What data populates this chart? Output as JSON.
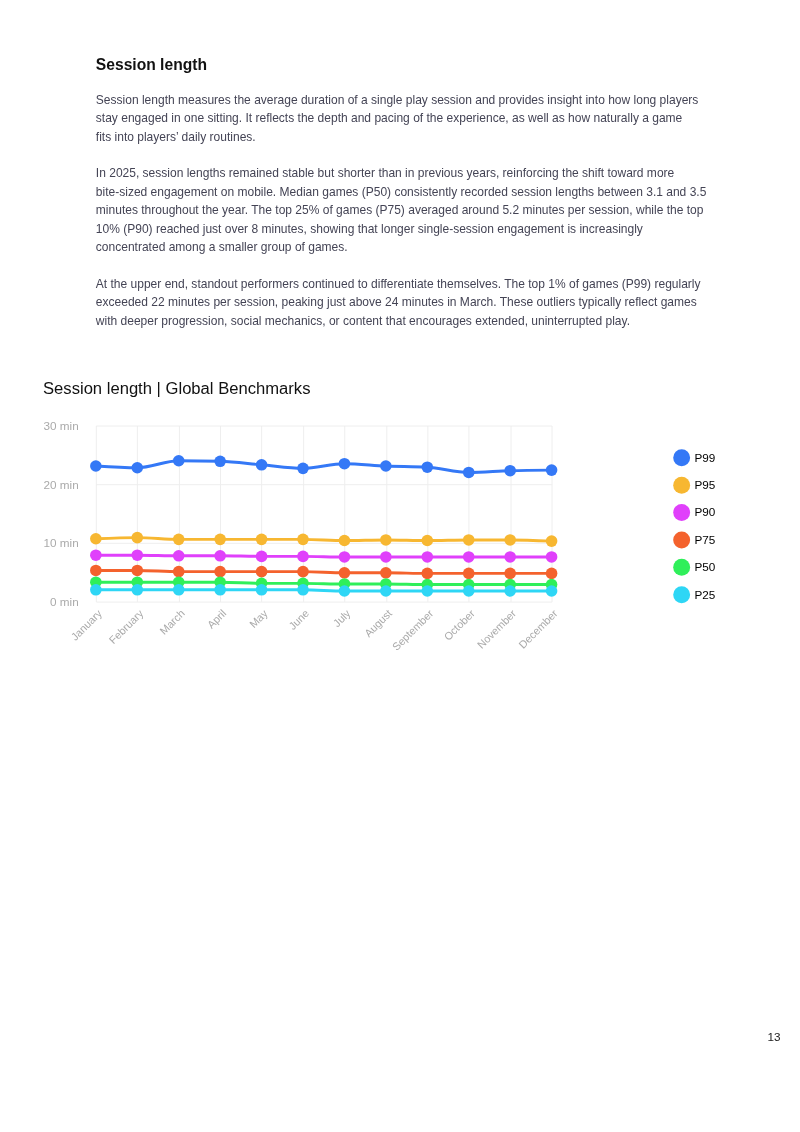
{
  "chart_data": {
    "type": "line",
    "title": "Session length | Global Benchmarks",
    "annotations": [
      "Session length",
      "Session length measures the average duration of a single play session and provides insight into how long players stay engaged in one sitting. It reflects the depth and pacing of the experience, as well as how naturally a game fits into players’ daily routines.",
      "In 2025, session lengths remained stable but shorter than in previous years, reinforcing the shift toward more bite-sized engagement on mobile. Median games (P50) consistently recorded session lengths between 3.1 and 3.5 minutes throughout the year. The top 25% of games (P75) averaged around 5.2 minutes per session, while the top 10% (P90) reached just over 8 minutes, showing that longer single-session engagement is increasingly concentrated among a smaller group of games.",
      "At the upper end, standout performers continued to differentiate themselves. The top 1% of games (P99) regularly exceeded 22 minutes per session, peaking just above 24 minutes in March. These outliers typically reflect games with deeper progression, social mechanics, or content that encourages extended, uninterrupted play.",
      "13"
    ],
    "categories": [
      "January",
      "February",
      "March",
      "April",
      "May",
      "June",
      "July",
      "August",
      "September",
      "October",
      "November",
      "December"
    ],
    "series": [
      {
        "name": "P99",
        "color": "#3478f6",
        "values": [
          23.1,
          22.8,
          24.0,
          23.9,
          23.3,
          22.7,
          23.5,
          23.1,
          22.9,
          22.0,
          22.3,
          22.4
        ]
      },
      {
        "name": "P95",
        "color": "#f7b731",
        "values": [
          10.7,
          10.9,
          10.6,
          10.6,
          10.6,
          10.6,
          10.4,
          10.5,
          10.4,
          10.5,
          10.5,
          10.3
        ]
      },
      {
        "name": "P90",
        "color": "#e040fb",
        "values": [
          7.9,
          7.9,
          7.8,
          7.8,
          7.7,
          7.7,
          7.6,
          7.6,
          7.6,
          7.6,
          7.6,
          7.6
        ]
      },
      {
        "name": "P75",
        "color": "#f4622d",
        "values": [
          5.3,
          5.3,
          5.1,
          5.1,
          5.1,
          5.1,
          4.9,
          4.9,
          4.8,
          4.8,
          4.8,
          4.8
        ]
      },
      {
        "name": "P50",
        "color": "#2fef5a",
        "values": [
          3.3,
          3.3,
          3.3,
          3.3,
          3.1,
          3.1,
          3.0,
          3.0,
          2.9,
          2.9,
          2.9,
          2.9
        ]
      },
      {
        "name": "P25",
        "color": "#2ed6f5",
        "values": [
          2.0,
          2.0,
          2.0,
          2.0,
          2.0,
          2.0,
          1.8,
          1.8,
          1.8,
          1.8,
          1.8,
          1.8
        ]
      }
    ],
    "ylim": [
      0,
      30
    ],
    "yticks": [
      {
        "value": 0,
        "label": "0 min"
      },
      {
        "value": 10,
        "label": "10 min"
      },
      {
        "value": 20,
        "label": "20 min"
      },
      {
        "value": 30,
        "label": "30 min"
      }
    ],
    "grid": true,
    "legend": "right",
    "marker": "circle",
    "line_style": "solid"
  }
}
